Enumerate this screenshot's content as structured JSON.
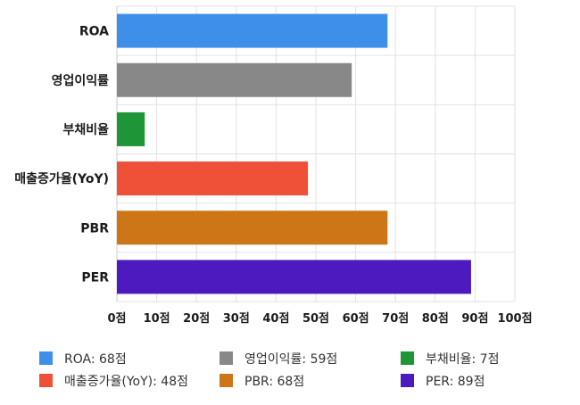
{
  "chart_data": {
    "type": "bar",
    "orientation": "horizontal",
    "categories": [
      "ROA",
      "영업이익률",
      "부채비율",
      "매출증가율(YoY)",
      "PBR",
      "PER"
    ],
    "values": [
      68,
      59,
      7,
      48,
      68,
      89
    ],
    "colors": [
      "#3d8fe8",
      "#888888",
      "#1e9637",
      "#ee5038",
      "#cc7617",
      "#4d1abf"
    ],
    "xlim": [
      0,
      100
    ],
    "x_ticks": [
      0,
      10,
      20,
      30,
      40,
      50,
      60,
      70,
      80,
      90,
      100
    ],
    "tick_suffix": "점",
    "grid": true,
    "legend_position": "bottom",
    "legend": [
      "ROA: 68점",
      "영업이익률: 59점",
      "부채비율: 7점",
      "매출증가율(YoY): 48점",
      "PBR: 68점",
      "PER: 89점"
    ]
  }
}
